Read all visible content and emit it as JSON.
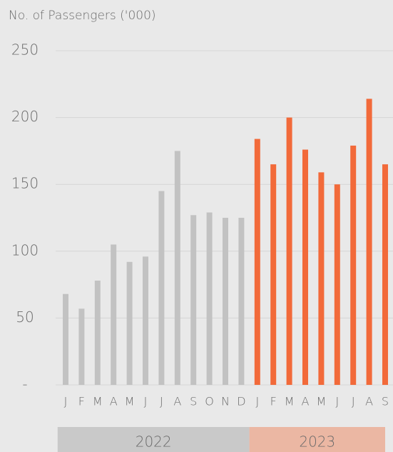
{
  "chart_data": {
    "type": "bar",
    "y_label": "No. of Passengers ('000)",
    "categories": [
      "J",
      "F",
      "M",
      "A",
      "M",
      "J",
      "J",
      "A",
      "S",
      "O",
      "N",
      "D",
      "J",
      "F",
      "M",
      "A",
      "M",
      "J",
      "J",
      "A",
      "S"
    ],
    "series": [
      {
        "name": "2022",
        "color": "#c2c2c2",
        "values": [
          68,
          57,
          78,
          105,
          92,
          96,
          145,
          175,
          127,
          129,
          125,
          125,
          null,
          null,
          null,
          null,
          null,
          null,
          null,
          null,
          null
        ]
      },
      {
        "name": "2023",
        "color": "#f26a3a",
        "values": [
          null,
          null,
          null,
          null,
          null,
          null,
          null,
          null,
          null,
          null,
          null,
          null,
          184,
          165,
          200,
          176,
          159,
          150,
          179,
          214,
          165
        ]
      }
    ],
    "ylim": [
      0,
      250
    ],
    "yticks": [
      {
        "value": 0,
        "label": "-"
      },
      50,
      100,
      150,
      200,
      250
    ],
    "grid": true
  }
}
